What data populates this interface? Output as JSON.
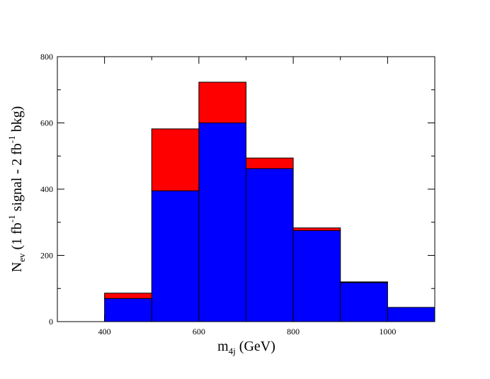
{
  "chart_data": {
    "type": "bar",
    "style": "stacked-histogram",
    "bin_edges": [
      400,
      500,
      600,
      700,
      800,
      900,
      1000,
      1100
    ],
    "series": [
      {
        "values": [
          70,
          395,
          600,
          462,
          275,
          118,
          43
        ],
        "color": "#0000ff"
      },
      {
        "values": [
          16,
          187,
          123,
          32,
          8,
          2,
          0
        ],
        "color": "#ff0000"
      }
    ],
    "xlim": [
      300,
      1100
    ],
    "ylim": [
      0,
      800
    ],
    "xticks": [
      400,
      600,
      800,
      1000
    ],
    "yticks": [
      0,
      200,
      400,
      600,
      800
    ],
    "xlabel": {
      "main": "m",
      "sub": "4j",
      "rest": " (GeV)"
    },
    "ylabel": {
      "n": "N",
      "n_sub": "ev",
      "p1": " (1 fb",
      "sup1": "-1",
      "p2": " signal - 2 fb",
      "sup2": "-1",
      "p3": " bkg)"
    },
    "grid": false,
    "legend": "none"
  }
}
